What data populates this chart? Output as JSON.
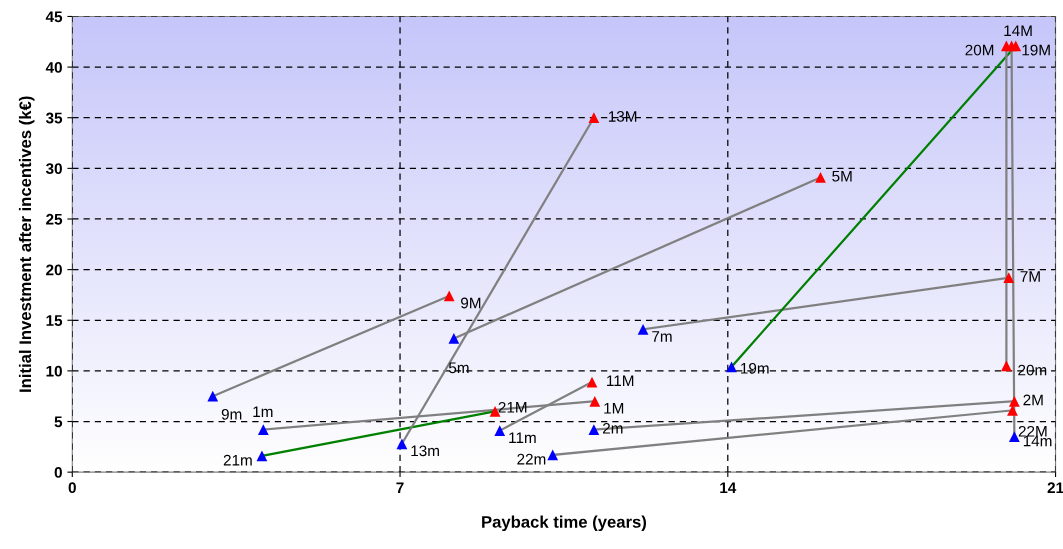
{
  "chart_data": {
    "type": "scatter",
    "xlabel": "Payback time (years)",
    "ylabel": "Initial Investment after incentives (k€)",
    "xlim": [
      0,
      21
    ],
    "xticks": [
      0,
      7,
      14,
      21
    ],
    "ylim": [
      0,
      45
    ],
    "yticks": [
      0,
      5,
      10,
      15,
      20,
      25,
      30,
      35,
      40,
      45
    ],
    "grid": true,
    "series": [
      {
        "type": "line",
        "color": "#808080",
        "x": [
          3.0,
          8.05
        ],
        "values": [
          7.5,
          17.4
        ]
      },
      {
        "type": "line",
        "color": "#808080",
        "x": [
          4.08,
          11.16
        ],
        "values": [
          4.2,
          7.0
        ]
      },
      {
        "type": "line",
        "color": "#008000",
        "x": [
          4.05,
          9.03
        ],
        "values": [
          1.6,
          6.0
        ]
      },
      {
        "type": "line",
        "color": "#808080",
        "x": [
          7.04,
          11.14
        ],
        "values": [
          2.8,
          35.0
        ]
      },
      {
        "type": "line",
        "color": "#808080",
        "x": [
          8.15,
          15.98
        ],
        "values": [
          13.2,
          29.1
        ]
      },
      {
        "type": "line",
        "color": "#808080",
        "x": [
          9.13,
          11.1
        ],
        "values": [
          4.1,
          8.9
        ]
      },
      {
        "type": "line",
        "color": "#808080",
        "x": [
          10.26,
          20.08
        ],
        "values": [
          1.7,
          6.1
        ]
      },
      {
        "type": "line",
        "color": "#808080",
        "x": [
          11.14,
          20.12
        ],
        "values": [
          4.2,
          7.0
        ]
      },
      {
        "type": "line",
        "color": "#808080",
        "x": [
          12.19,
          20.0
        ],
        "values": [
          14.1,
          19.2
        ]
      },
      {
        "type": "line",
        "color": "#008000",
        "x": [
          14.08,
          20.15
        ],
        "values": [
          10.4,
          42.1
        ]
      },
      {
        "type": "line",
        "color": "#808080",
        "x": [
          20.12,
          20.06
        ],
        "values": [
          3.5,
          42.1
        ]
      },
      {
        "type": "line",
        "color": "#808080",
        "x": [
          19.95,
          19.95
        ],
        "values": [
          10.5,
          42.1
        ]
      },
      {
        "marker": "triangle",
        "color": "#0000ff",
        "x": [
          3.0,
          4.08,
          4.05,
          7.04,
          8.15,
          9.13,
          10.26,
          11.14,
          12.19,
          14.08,
          20.12
        ],
        "values": [
          7.5,
          4.2,
          1.6,
          2.8,
          13.2,
          4.1,
          1.7,
          4.2,
          14.1,
          10.4,
          3.5
        ]
      },
      {
        "marker": "triangle",
        "color": "#ff0000",
        "x": [
          8.05,
          11.16,
          9.03,
          11.14,
          15.98,
          11.1,
          20.08,
          20.12,
          20.0,
          20.15,
          20.06,
          19.95,
          19.95
        ],
        "values": [
          17.4,
          7.0,
          6.0,
          35.0,
          29.1,
          8.9,
          6.1,
          7.0,
          19.2,
          42.1,
          42.1,
          10.5,
          42.1
        ]
      }
    ],
    "annotations": [
      {
        "text": "9m",
        "x": 3.0,
        "y": 7.5
      },
      {
        "text": "1m",
        "x": 4.08,
        "y": 4.2
      },
      {
        "text": "21m",
        "x": 4.05,
        "y": 1.6
      },
      {
        "text": "13m",
        "x": 7.04,
        "y": 2.8
      },
      {
        "text": "5m",
        "x": 8.15,
        "y": 13.2
      },
      {
        "text": "11m",
        "x": 9.13,
        "y": 4.1
      },
      {
        "text": "22m",
        "x": 10.26,
        "y": 1.7
      },
      {
        "text": "2m",
        "x": 11.14,
        "y": 4.2
      },
      {
        "text": "7m",
        "x": 12.19,
        "y": 14.1
      },
      {
        "text": "19m",
        "x": 14.08,
        "y": 10.4
      },
      {
        "text": "14m",
        "x": 20.12,
        "y": 3.5
      },
      {
        "text": "9M",
        "x": 8.05,
        "y": 17.4
      },
      {
        "text": "1M",
        "x": 11.16,
        "y": 7.0
      },
      {
        "text": "21M",
        "x": 9.03,
        "y": 6.0
      },
      {
        "text": "13M",
        "x": 11.14,
        "y": 35.0
      },
      {
        "text": "5M",
        "x": 15.98,
        "y": 29.1
      },
      {
        "text": "11M",
        "x": 11.1,
        "y": 8.9
      },
      {
        "text": "22M",
        "x": 20.08,
        "y": 6.1
      },
      {
        "text": "2M",
        "x": 20.12,
        "y": 7.0
      },
      {
        "text": "7M",
        "x": 20.0,
        "y": 19.2
      },
      {
        "text": "19M",
        "x": 20.15,
        "y": 42.1
      },
      {
        "text": "14M",
        "x": 20.06,
        "y": 42.1
      },
      {
        "text": "20m",
        "x": 19.95,
        "y": 10.5
      },
      {
        "text": "20M",
        "x": 19.95,
        "y": 42.1
      }
    ]
  }
}
